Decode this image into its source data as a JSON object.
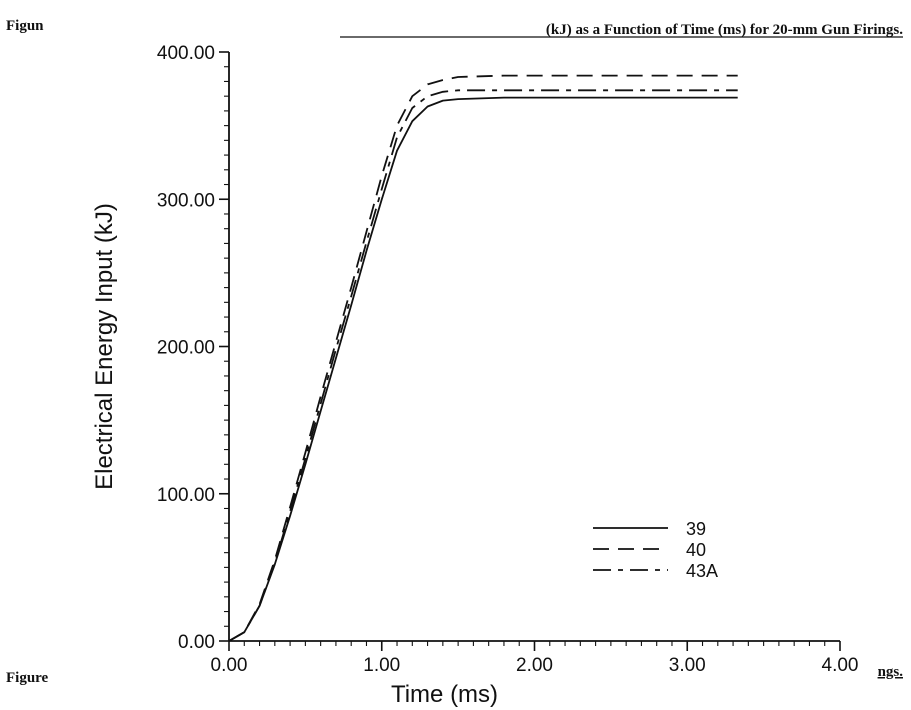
{
  "caption": {
    "top_left_fragment": "Figun",
    "top_title": "(kJ) as a Function of Time (ms) for 20-mm Gun Firings.",
    "bottom_left_fragment": "Figure",
    "bottom_right_fragment": "ngs."
  },
  "chart_data": {
    "type": "line",
    "xlabel": "Time (ms)",
    "ylabel": "Electrical Energy Input (kJ)",
    "xlim": [
      0,
      4
    ],
    "ylim": [
      0,
      400
    ],
    "x_ticks": [
      0,
      1,
      2,
      3,
      4
    ],
    "y_ticks": [
      0,
      100,
      200,
      300,
      400
    ],
    "x_tick_labels": [
      "0.00",
      "1.00",
      "2.00",
      "3.00",
      "4.00"
    ],
    "y_tick_labels": [
      "0.00",
      "100.00",
      "200.00",
      "300.00",
      "400.00"
    ],
    "grid": false,
    "legend_position": "lower-right",
    "series": [
      {
        "name": "39",
        "style": "solid",
        "points": [
          [
            0,
            0
          ],
          [
            0.1,
            6
          ],
          [
            0.2,
            24
          ],
          [
            0.3,
            52
          ],
          [
            0.4,
            85
          ],
          [
            0.5,
            120
          ],
          [
            0.6,
            156
          ],
          [
            0.7,
            192
          ],
          [
            0.8,
            228
          ],
          [
            0.9,
            265
          ],
          [
            1.0,
            300
          ],
          [
            1.1,
            333
          ],
          [
            1.2,
            353
          ],
          [
            1.3,
            363
          ],
          [
            1.4,
            367
          ],
          [
            1.5,
            368
          ],
          [
            1.8,
            369
          ],
          [
            2.5,
            369
          ],
          [
            3.33,
            369
          ]
        ]
      },
      {
        "name": "40",
        "style": "dashed",
        "points": [
          [
            0,
            0
          ],
          [
            0.1,
            6
          ],
          [
            0.2,
            25
          ],
          [
            0.3,
            55
          ],
          [
            0.4,
            91
          ],
          [
            0.5,
            128
          ],
          [
            0.6,
            166
          ],
          [
            0.7,
            203
          ],
          [
            0.8,
            240
          ],
          [
            0.9,
            278
          ],
          [
            1.0,
            316
          ],
          [
            1.1,
            350
          ],
          [
            1.2,
            370
          ],
          [
            1.3,
            378
          ],
          [
            1.4,
            381
          ],
          [
            1.5,
            383
          ],
          [
            1.8,
            384
          ],
          [
            2.5,
            384
          ],
          [
            3.33,
            384
          ]
        ]
      },
      {
        "name": "43A",
        "style": "dash-dot",
        "points": [
          [
            0,
            0
          ],
          [
            0.1,
            6
          ],
          [
            0.2,
            24
          ],
          [
            0.3,
            53
          ],
          [
            0.4,
            88
          ],
          [
            0.5,
            124
          ],
          [
            0.6,
            161
          ],
          [
            0.7,
            198
          ],
          [
            0.8,
            234
          ],
          [
            0.9,
            271
          ],
          [
            1.0,
            307
          ],
          [
            1.1,
            342
          ],
          [
            1.2,
            362
          ],
          [
            1.3,
            370
          ],
          [
            1.4,
            373
          ],
          [
            1.5,
            374
          ],
          [
            1.8,
            374
          ],
          [
            2.5,
            374
          ],
          [
            3.33,
            374
          ]
        ]
      }
    ]
  }
}
